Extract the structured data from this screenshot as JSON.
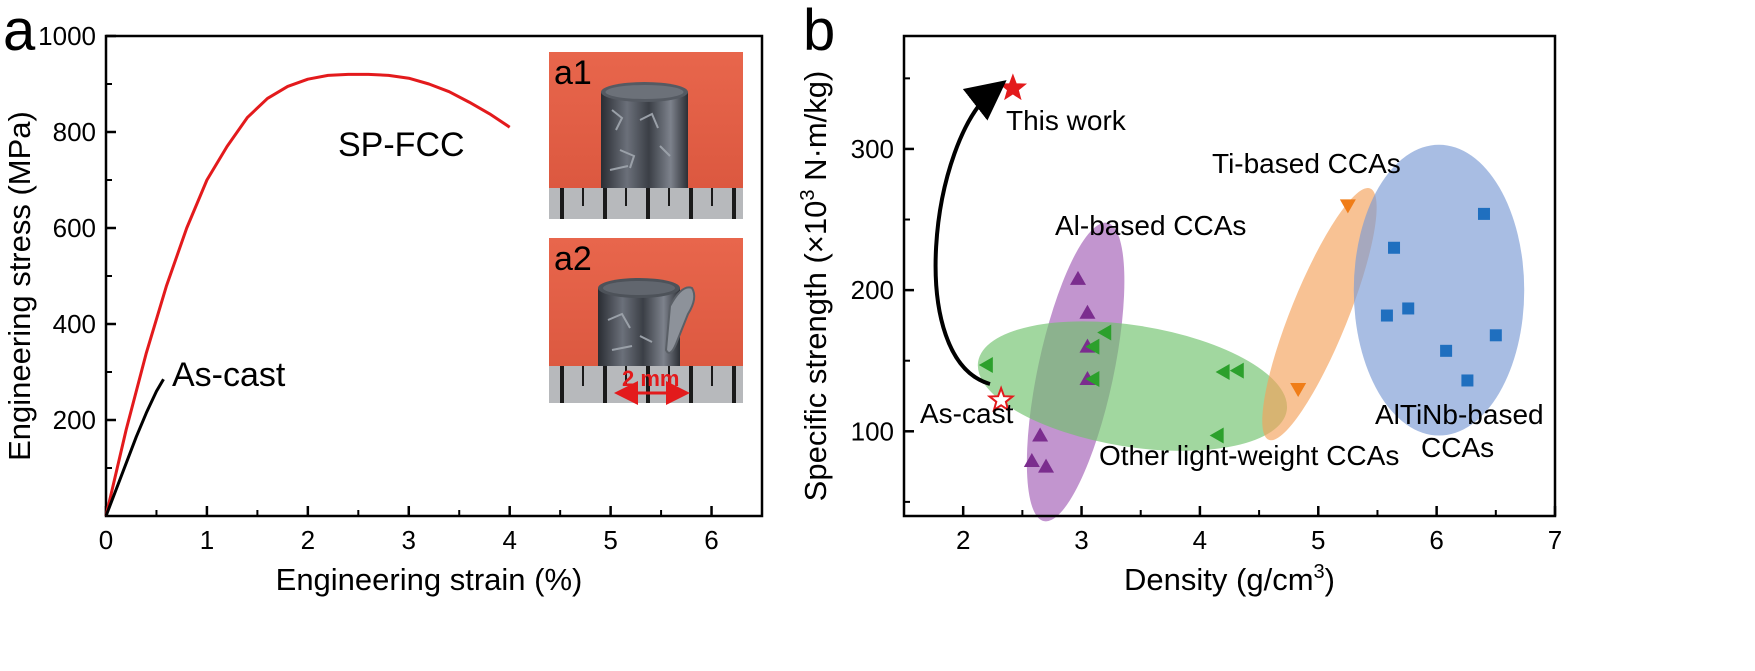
{
  "panels": [
    {
      "letter": "a",
      "chart_data": {
        "type": "line",
        "xlabel": "Engineering strain (%)",
        "ylabel": "Engineering stress (MPa)",
        "xlim": [
          0,
          6.5
        ],
        "ylim": [
          0,
          1000
        ],
        "xticks": [
          "0",
          "1",
          "2",
          "3",
          "4",
          "5",
          "6"
        ],
        "yticks": [
          "200",
          "400",
          "600",
          "800",
          "1000"
        ],
        "series": [
          {
            "name": "SP-FCC",
            "color": "#e31a1c",
            "x": [
              0,
              0.2,
              0.4,
              0.6,
              0.8,
              1.0,
              1.2,
              1.4,
              1.6,
              1.8,
              2.0,
              2.2,
              2.4,
              2.6,
              2.8,
              3.0,
              3.2,
              3.4,
              3.6,
              3.8,
              4.0
            ],
            "y": [
              0,
              180,
              340,
              480,
              600,
              700,
              770,
              830,
              870,
              895,
              910,
              918,
              920,
              920,
              918,
              912,
              900,
              884,
              862,
              838,
              810
            ]
          },
          {
            "name": "As-cast",
            "color": "#000000",
            "x": [
              0,
              0.1,
              0.2,
              0.3,
              0.4,
              0.5,
              0.57
            ],
            "y": [
              0,
              55,
              110,
              165,
              215,
              260,
              285
            ]
          }
        ],
        "insets": [
          {
            "label": "a1"
          },
          {
            "label": "a2",
            "scale_bar": "2 mm"
          }
        ]
      }
    },
    {
      "letter": "b",
      "chart_data": {
        "type": "scatter",
        "xlabel_main": "Density (g/cm",
        "xlabel_sup": "3",
        "xlabel_end": ")",
        "ylabel_main": "Specific strength (×10",
        "ylabel_sup": "3",
        "ylabel_end": " N·m/kg)",
        "xlim": [
          1.5,
          7
        ],
        "ylim": [
          40,
          380
        ],
        "xticks": [
          "2",
          "3",
          "4",
          "5",
          "6",
          "7"
        ],
        "yticks": [
          "100",
          "200",
          "300"
        ],
        "groups": [
          {
            "name": "Al-based CCAs",
            "marker": "triangle-up",
            "color": "#7b2d8e",
            "ellipse_color": "#a15cb6",
            "points": [
              [
                2.97,
                208
              ],
              [
                2.65,
                97
              ],
              [
                2.58,
                79
              ],
              [
                2.7,
                75
              ],
              [
                3.05,
                184
              ],
              [
                3.05,
                160
              ],
              [
                3.05,
                137
              ]
            ]
          },
          {
            "name": "Other light-weight CCAs",
            "marker": "triangle-left",
            "color": "#2ca02c",
            "ellipse_color": "#6fc26b",
            "points": [
              [
                2.2,
                147
              ],
              [
                3.1,
                137
              ],
              [
                3.1,
                160
              ],
              [
                3.2,
                170
              ],
              [
                4.2,
                142
              ],
              [
                4.32,
                143
              ],
              [
                4.15,
                97
              ]
            ]
          },
          {
            "name": "Ti-based CCAs",
            "marker": "triangle-down",
            "color": "#f07d18",
            "ellipse_color": "#f5a25a",
            "points": [
              [
                5.25,
                260
              ],
              [
                4.83,
                130
              ]
            ]
          },
          {
            "name": "AlTiNb-based CCAs",
            "marker": "square",
            "color": "#1f6fbf",
            "ellipse_color": "#7a9ad4",
            "label_lines": [
              "AlTiNb-based",
              "CCAs"
            ],
            "points": [
              [
                6.4,
                254
              ],
              [
                5.64,
                230
              ],
              [
                5.58,
                182
              ],
              [
                5.76,
                187
              ],
              [
                6.08,
                157
              ],
              [
                6.5,
                168
              ],
              [
                6.26,
                136
              ]
            ]
          }
        ],
        "this_work": {
          "label": "This work",
          "x": 2.42,
          "y": 343,
          "color": "#e31a1c"
        },
        "as_cast": {
          "label": "As-cast",
          "x": 2.32,
          "y": 122,
          "color": "#e31a1c"
        }
      }
    }
  ]
}
